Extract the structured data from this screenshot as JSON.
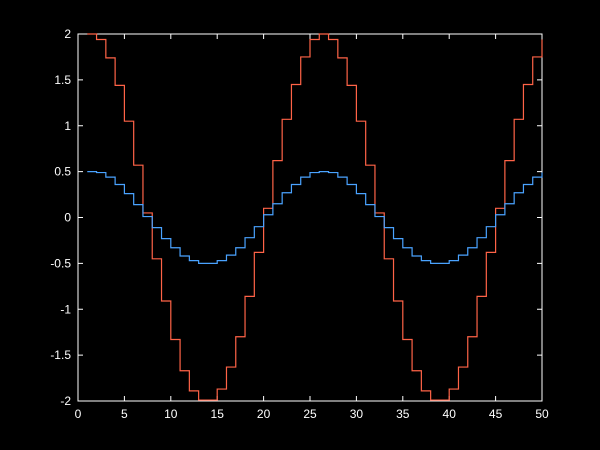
{
  "chart_data": {
    "type": "line",
    "style": "stairs",
    "title": "",
    "xlabel": "",
    "ylabel": "",
    "xlim": [
      0,
      50
    ],
    "ylim": [
      -2,
      2
    ],
    "grid": false,
    "colors": {
      "background": "#000000",
      "axes": "#ffffff",
      "tick_text": "#ffffff"
    },
    "x_ticks": [
      0,
      5,
      10,
      15,
      20,
      25,
      30,
      35,
      40,
      45,
      50
    ],
    "x_tick_labels": [
      "0",
      "5",
      "10",
      "15",
      "20",
      "25",
      "30",
      "35",
      "40",
      "45",
      "50"
    ],
    "y_ticks": [
      2,
      1.5,
      1,
      0.5,
      0,
      -0.5,
      -1,
      -1.5,
      -2
    ],
    "y_tick_labels": [
      "2",
      "1.5",
      "1",
      "0.5",
      "0",
      "-0.5",
      "-1",
      "-1.5",
      "-2"
    ],
    "x": [
      1,
      2,
      3,
      4,
      5,
      6,
      7,
      8,
      9,
      10,
      11,
      12,
      13,
      14,
      15,
      16,
      17,
      18,
      19,
      20,
      21,
      22,
      23,
      24,
      25,
      26,
      27,
      28,
      29,
      30,
      31,
      32,
      33,
      34,
      35,
      36,
      37,
      38,
      39,
      40,
      41,
      42,
      43,
      44,
      45,
      46,
      47,
      48,
      49,
      50
    ],
    "series": [
      {
        "color": "#ff6347",
        "values": [
          2.0,
          1.94,
          1.74,
          1.44,
          1.05,
          0.57,
          0.05,
          -0.45,
          -0.91,
          -1.33,
          -1.67,
          -1.89,
          -1.99,
          -1.99,
          -1.87,
          -1.63,
          -1.3,
          -0.86,
          -0.38,
          0.1,
          0.62,
          1.07,
          1.45,
          1.75,
          1.94,
          2.0,
          1.94,
          1.74,
          1.44,
          1.05,
          0.57,
          0.05,
          -0.45,
          -0.91,
          -1.33,
          -1.67,
          -1.89,
          -1.99,
          -1.99,
          -1.87,
          -1.63,
          -1.3,
          -0.86,
          -0.38,
          0.1,
          0.62,
          1.07,
          1.45,
          1.75,
          1.94
        ]
      },
      {
        "color": "#4aa3ff",
        "values": [
          0.5,
          0.49,
          0.44,
          0.36,
          0.26,
          0.14,
          0.01,
          -0.11,
          -0.23,
          -0.33,
          -0.42,
          -0.47,
          -0.5,
          -0.5,
          -0.47,
          -0.41,
          -0.33,
          -0.22,
          -0.1,
          0.03,
          0.15,
          0.27,
          0.36,
          0.44,
          0.49,
          0.5,
          0.49,
          0.44,
          0.36,
          0.26,
          0.14,
          0.01,
          -0.11,
          -0.23,
          -0.33,
          -0.42,
          -0.47,
          -0.5,
          -0.5,
          -0.47,
          -0.41,
          -0.33,
          -0.22,
          -0.1,
          0.03,
          0.15,
          0.27,
          0.36,
          0.44,
          0.49
        ]
      }
    ]
  }
}
